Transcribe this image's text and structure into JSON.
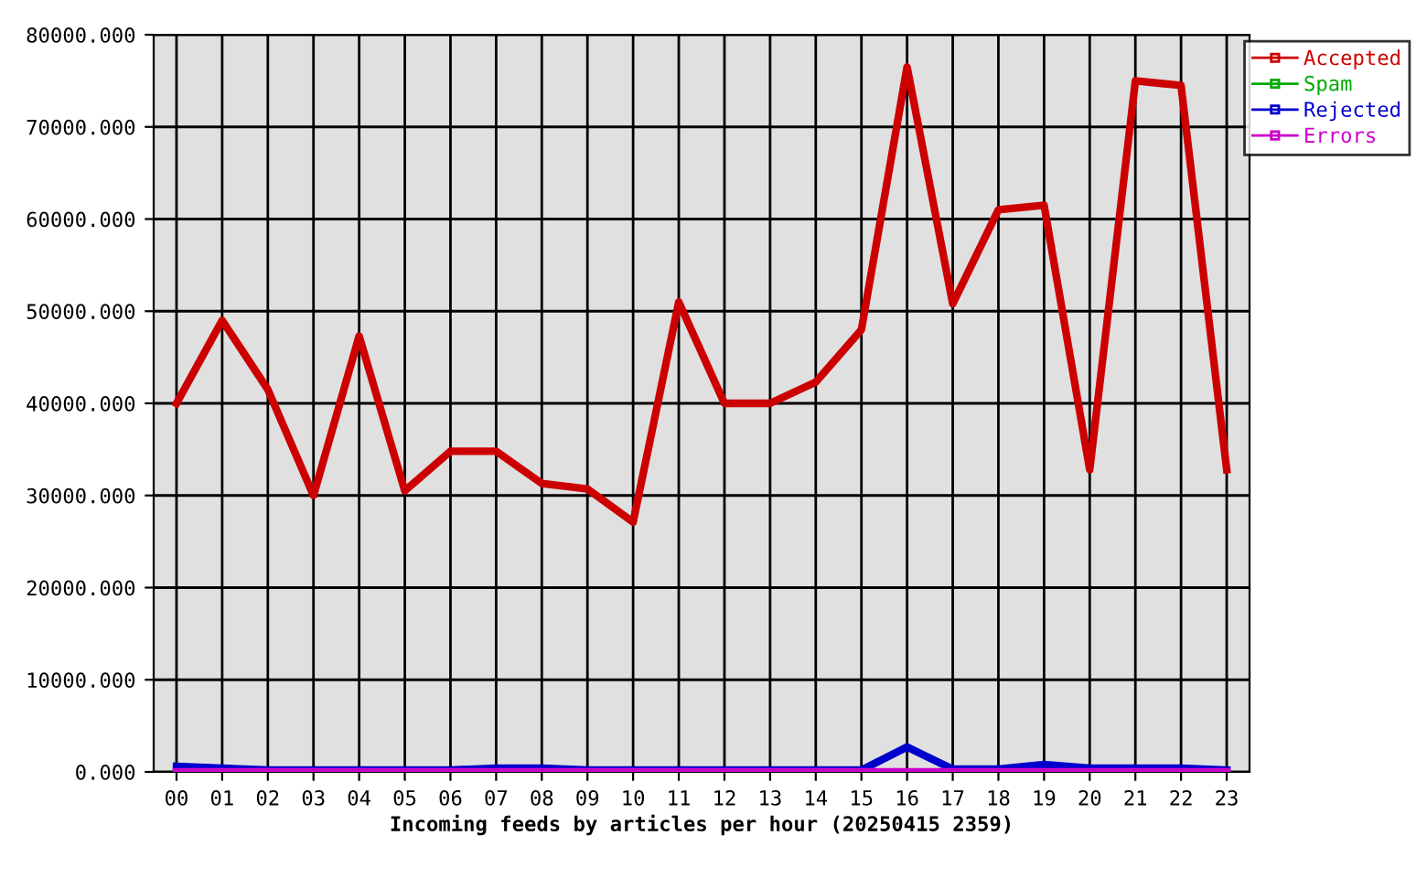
{
  "chart_data": {
    "type": "line",
    "xlabel": "Incoming feeds by articles per hour (20250415 2359)",
    "categories": [
      "00",
      "01",
      "02",
      "03",
      "04",
      "05",
      "06",
      "07",
      "08",
      "09",
      "10",
      "11",
      "12",
      "13",
      "14",
      "15",
      "16",
      "17",
      "18",
      "19",
      "20",
      "21",
      "22",
      "23"
    ],
    "series": [
      {
        "name": "Accepted",
        "color": "#cc0000",
        "values": [
          40000,
          49000,
          41500,
          30000,
          47300,
          30500,
          34800,
          34800,
          31300,
          30700,
          27100,
          51000,
          40000,
          40000,
          42300,
          48000,
          76500,
          50800,
          61000,
          61500,
          32800,
          75000,
          74500,
          32800
        ]
      },
      {
        "name": "Spam",
        "color": "#00aa00",
        "values": [
          null,
          null,
          null,
          null,
          null,
          null,
          null,
          null,
          null,
          null,
          null,
          null,
          null,
          null,
          null,
          null,
          null,
          null,
          null,
          null,
          null,
          null,
          null,
          null
        ]
      },
      {
        "name": "Rejected",
        "color": "#0000cc",
        "values": [
          600,
          400,
          200,
          200,
          200,
          200,
          200,
          400,
          400,
          200,
          200,
          200,
          200,
          200,
          200,
          200,
          2700,
          300,
          300,
          800,
          400,
          400,
          400,
          200
        ]
      },
      {
        "name": "Errors",
        "color": "#cc00cc",
        "values": [
          0,
          0,
          0,
          0,
          0,
          0,
          0,
          0,
          0,
          0,
          0,
          0,
          0,
          0,
          0,
          0,
          0,
          0,
          0,
          0,
          0,
          0,
          0,
          0
        ]
      }
    ],
    "ylim": [
      0,
      80000
    ],
    "yticks": [
      {
        "value": 0,
        "label": "0.000"
      },
      {
        "value": 10000,
        "label": "10000.000"
      },
      {
        "value": 20000,
        "label": "20000.000"
      },
      {
        "value": 30000,
        "label": "30000.000"
      },
      {
        "value": 40000,
        "label": "40000.000"
      },
      {
        "value": 50000,
        "label": "50000.000"
      },
      {
        "value": 60000,
        "label": "60000.000"
      },
      {
        "value": 70000,
        "label": "70000.000"
      },
      {
        "value": 80000,
        "label": "80000.000"
      }
    ],
    "grid": true,
    "legend": "top right",
    "marker": "none",
    "line_style": "solid"
  }
}
